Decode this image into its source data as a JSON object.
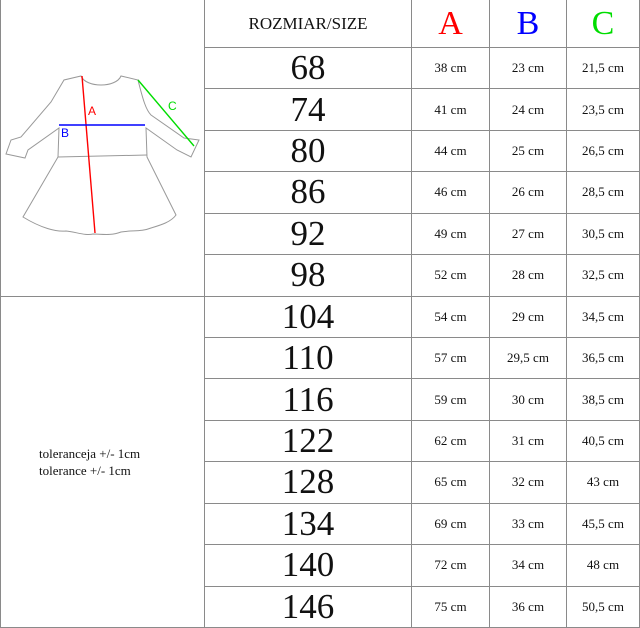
{
  "header": {
    "size_label": "ROZMIAR/SIZE",
    "a": "A",
    "b": "B",
    "c": "C"
  },
  "colors": {
    "a": "#ff0000",
    "b": "#0000ff",
    "c": "#00dd00",
    "grid": "#8a8a8a"
  },
  "diagram": {
    "label_a": "A",
    "label_b": "B",
    "label_c": "C"
  },
  "tolerance": [
    "toleranceja +/- 1cm",
    "tolerance +/- 1cm"
  ],
  "rows": [
    {
      "size": "68",
      "a": "38 cm",
      "b": "23 cm",
      "c": "21,5 cm"
    },
    {
      "size": "74",
      "a": "41 cm",
      "b": "24 cm",
      "c": "23,5 cm"
    },
    {
      "size": "80",
      "a": "44 cm",
      "b": "25 cm",
      "c": "26,5 cm"
    },
    {
      "size": "86",
      "a": "46 cm",
      "b": "26 cm",
      "c": "28,5 cm"
    },
    {
      "size": "92",
      "a": "49 cm",
      "b": "27 cm",
      "c": "30,5 cm"
    },
    {
      "size": "98",
      "a": "52 cm",
      "b": "28 cm",
      "c": "32,5 cm"
    },
    {
      "size": "104",
      "a": "54 cm",
      "b": "29 cm",
      "c": "34,5 cm"
    },
    {
      "size": "110",
      "a": "57 cm",
      "b": "29,5 cm",
      "c": "36,5 cm"
    },
    {
      "size": "116",
      "a": "59 cm",
      "b": "30 cm",
      "c": "38,5 cm"
    },
    {
      "size": "122",
      "a": "62 cm",
      "b": "31 cm",
      "c": "40,5 cm"
    },
    {
      "size": "128",
      "a": "65 cm",
      "b": "32 cm",
      "c": "43 cm"
    },
    {
      "size": "134",
      "a": "69 cm",
      "b": "33 cm",
      "c": "45,5 cm"
    },
    {
      "size": "140",
      "a": "72 cm",
      "b": "34 cm",
      "c": "48 cm"
    },
    {
      "size": "146",
      "a": "75 cm",
      "b": "36 cm",
      "c": "50,5 cm"
    }
  ]
}
